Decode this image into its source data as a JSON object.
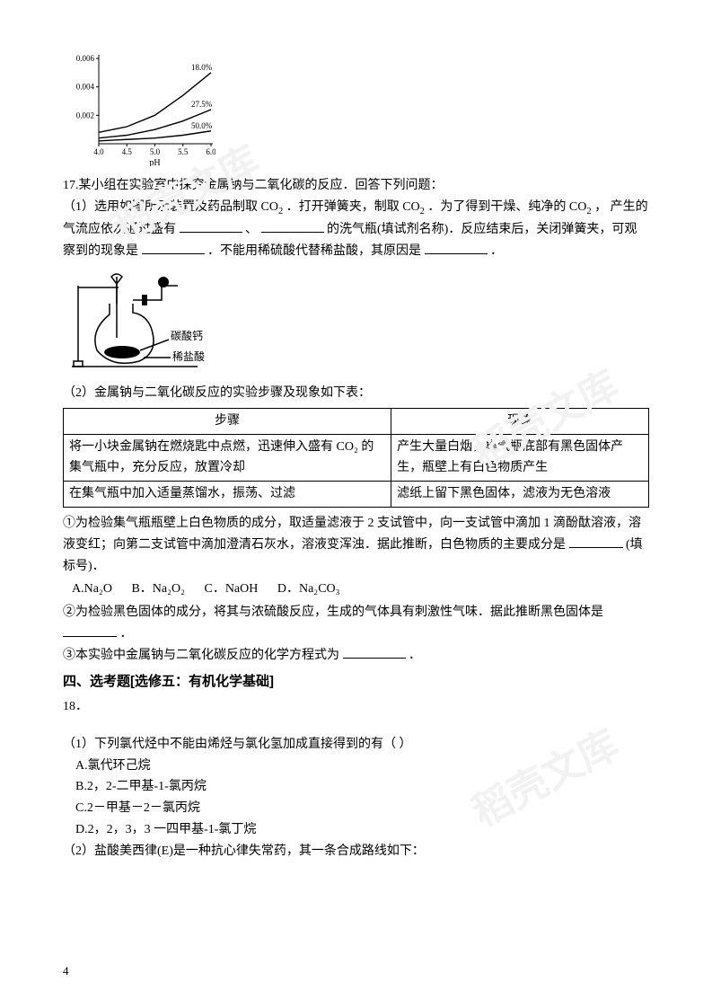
{
  "chart": {
    "type": "line",
    "background_color": "#ffffff",
    "axis_color": "#000000",
    "tick_fontsize": 9,
    "label_fontsize": 10,
    "series_label_fontsize": 9,
    "line_color": "#000000",
    "line_width": 1.4,
    "x_label": "pH",
    "x_ticks": [
      "4.0",
      "4.5",
      "5.0",
      "5.5",
      "6.0"
    ],
    "xlim": [
      4.0,
      6.0
    ],
    "y_ticks": [
      "0.002",
      "0.004",
      "0.006"
    ],
    "ylim": [
      0,
      0.006
    ],
    "series": [
      {
        "label": "18.0%",
        "points": [
          {
            "x": 4.0,
            "y": 0.0008
          },
          {
            "x": 4.5,
            "y": 0.0012
          },
          {
            "x": 5.0,
            "y": 0.002
          },
          {
            "x": 5.5,
            "y": 0.0034
          },
          {
            "x": 6.0,
            "y": 0.005
          }
        ]
      },
      {
        "label": "27.5%",
        "points": [
          {
            "x": 4.0,
            "y": 0.0004
          },
          {
            "x": 4.5,
            "y": 0.0006
          },
          {
            "x": 5.0,
            "y": 0.001
          },
          {
            "x": 5.5,
            "y": 0.0016
          },
          {
            "x": 6.0,
            "y": 0.0024
          }
        ]
      },
      {
        "label": "50.0%",
        "points": [
          {
            "x": 4.0,
            "y": 0.0002
          },
          {
            "x": 4.5,
            "y": 0.0003
          },
          {
            "x": 5.0,
            "y": 0.0004
          },
          {
            "x": 5.5,
            "y": 0.0006
          },
          {
            "x": 6.0,
            "y": 0.0009
          }
        ]
      }
    ]
  },
  "apparatus": {
    "label_acid": "稀盐酸",
    "label_solid": "碳酸钙"
  },
  "q17": {
    "intro": "17.某小组在实验室中探究金属钠与二氧化碳的反应．回答下列问题：",
    "p1_a": "（1）选用如图所示装置及药品制取 CO",
    "p1_b": "．打开弹簧夹，制取 CO",
    "p1_c": "．为了得到干燥、纯净的 CO",
    "p1_d": " ，  产生的气流应依次通过盛有",
    "p1_sep": "、",
    "p1_e": "的洗气瓶(填试剂名称)．反应结束后，关闭弹簧夹，可观察到的现象是",
    "p1_f": "．不能用稀硫酸代替稀盐酸，其原因是",
    "p1_end": "．",
    "p2_intro": "（2）金属钠与二氧化碳反应的实验步骤及现象如下表：",
    "q1_a": "①为检验集气瓶瓶壁上白色物质的成分，取适量滤液于 2 支试管中，向一支试管中滴加 1 滴酚酞溶液，溶液变红；向第二支试管中滴加澄清石灰水，溶液变浑浊．据此推断，白色物质的主要成分是",
    "q1_b": "(填标号)．",
    "q2_a": "②为检验黑色固体的成分，将其与浓硫酸反应，生成的气体具有刺激性气味．据此推断黑色固体是",
    "q2_end": "．",
    "q3_a": "③本实验中金属钠与二氧化碳反应的化学方程式为",
    "q3_end": "．"
  },
  "table": {
    "h1": "步骤",
    "h2": "现象",
    "r1c1": "将一小块金属钠在燃烧匙中点燃，迅速伸入盛有 CO₂ 的集气瓶中，充分反应，放置冷却",
    "r1c2": "产生大量白烟，集气瓶底部有黑色固体产生，瓶壁上有白色物质产生",
    "r2c1": "在集气瓶中加入适量蒸馏水，振荡、过滤",
    "r2c2": "滤纸上留下黑色固体，滤液为无色溶液"
  },
  "opts17": {
    "a": "A.Na₂O",
    "b": "B．Na₂O₂",
    "c": "C．NaOH",
    "d": "D．Na₂CO₃"
  },
  "section4": "四、选考题[选修五：有机化学基础]",
  "q18": {
    "num": "18．",
    "p1": "（1）下列氯代烃中不能由烯烃与氯化氢加成直接得到的有（   ）",
    "optA": "A.氯代环己烷",
    "optB": "B.2，2-二甲基-1-氯丙烷",
    "optC": "C.2－甲基－2－氯丙烷",
    "optD": "D.2，2，3，3 一四甲基-1-氯丁烷",
    "p2": "（2）盐酸美西律(E)是一种抗心律失常药，其一条合成路线如下："
  },
  "watermark_text": "稻壳文库",
  "page_number": "4"
}
